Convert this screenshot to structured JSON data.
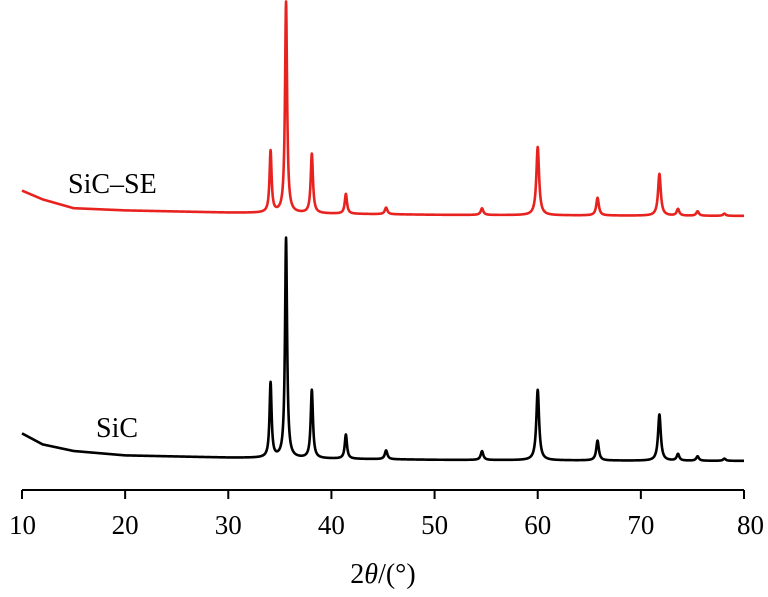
{
  "chart_data": {
    "type": "line",
    "xlabel_prefix": "2",
    "xlabel_symbol": "θ",
    "xlabel_suffix": "/(°)",
    "xlim": [
      10,
      80
    ],
    "x_ticks": [
      10,
      20,
      30,
      40,
      50,
      60,
      70,
      80
    ],
    "y_axis_shown": false,
    "grid": false,
    "series": [
      {
        "name": "SiC–SE",
        "color": "#e8231f",
        "offset": 1.0,
        "baseline": [
          [
            10,
            0.12
          ],
          [
            12,
            0.08
          ],
          [
            15,
            0.04
          ],
          [
            20,
            0.03
          ],
          [
            30,
            0.02
          ],
          [
            40,
            0.015
          ],
          [
            50,
            0.01
          ],
          [
            60,
            0.008
          ],
          [
            70,
            0.006
          ],
          [
            80,
            0.005
          ]
        ],
        "peaks": [
          [
            34.1,
            0.28,
            0.12
          ],
          [
            35.6,
            0.96,
            0.12
          ],
          [
            38.1,
            0.27,
            0.13
          ],
          [
            41.4,
            0.09,
            0.13
          ],
          [
            45.3,
            0.03,
            0.15
          ],
          [
            54.6,
            0.03,
            0.15
          ],
          [
            60.0,
            0.31,
            0.16
          ],
          [
            65.8,
            0.08,
            0.15
          ],
          [
            71.8,
            0.19,
            0.16
          ],
          [
            73.6,
            0.03,
            0.15
          ],
          [
            75.5,
            0.02,
            0.15
          ],
          [
            78.1,
            0.01,
            0.15
          ]
        ]
      },
      {
        "name": "SiC",
        "color": "#000000",
        "offset": 0.0,
        "baseline": [
          [
            10,
            0.13
          ],
          [
            12,
            0.08
          ],
          [
            15,
            0.05
          ],
          [
            20,
            0.03
          ],
          [
            30,
            0.02
          ],
          [
            40,
            0.015
          ],
          [
            50,
            0.01
          ],
          [
            60,
            0.008
          ],
          [
            70,
            0.006
          ],
          [
            80,
            0.005
          ]
        ],
        "peaks": [
          [
            34.1,
            0.34,
            0.12
          ],
          [
            35.6,
            1.0,
            0.12
          ],
          [
            38.1,
            0.31,
            0.13
          ],
          [
            41.4,
            0.11,
            0.13
          ],
          [
            45.3,
            0.04,
            0.15
          ],
          [
            54.6,
            0.04,
            0.15
          ],
          [
            60.0,
            0.32,
            0.16
          ],
          [
            65.8,
            0.09,
            0.15
          ],
          [
            71.8,
            0.21,
            0.16
          ],
          [
            73.6,
            0.03,
            0.15
          ],
          [
            75.5,
            0.02,
            0.15
          ],
          [
            78.1,
            0.01,
            0.15
          ]
        ]
      }
    ]
  }
}
